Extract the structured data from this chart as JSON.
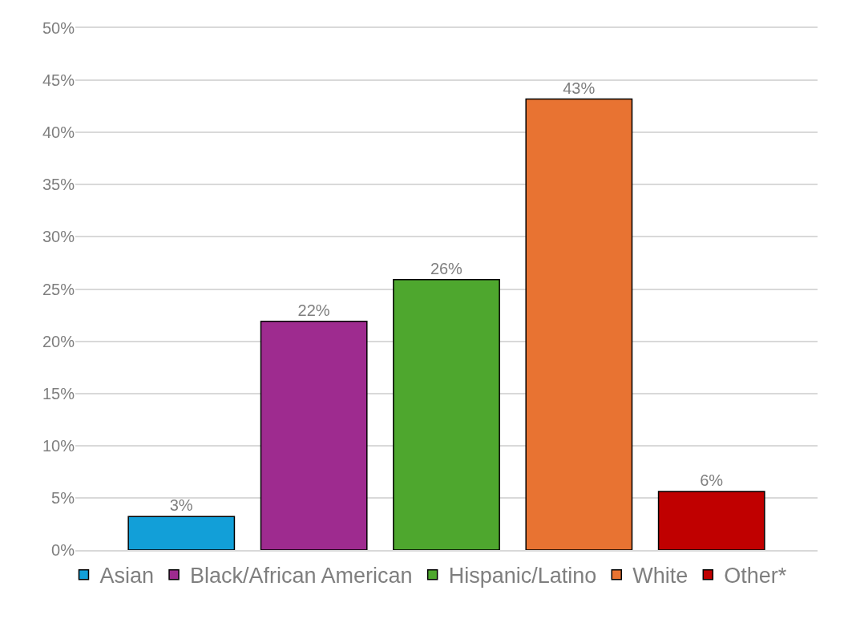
{
  "chart_data": {
    "type": "bar",
    "categories": [
      null,
      null,
      null,
      null,
      null
    ],
    "series": [
      {
        "name": "Asian",
        "color": "#129fd8",
        "values": [
          3.2,
          null,
          null,
          null,
          null
        ],
        "value_labels": [
          "3%",
          null,
          null,
          null,
          null
        ]
      },
      {
        "name": "Black/African American",
        "color": "#9e2b8f",
        "values": [
          null,
          21.9,
          null,
          null,
          null
        ],
        "value_labels": [
          null,
          "22%",
          null,
          null,
          null
        ]
      },
      {
        "name": "Hispanic/Latino",
        "color": "#4ea72e",
        "values": [
          null,
          null,
          25.9,
          null,
          null
        ],
        "value_labels": [
          null,
          null,
          "26%",
          null,
          null
        ]
      },
      {
        "name": "White",
        "color": "#e87332",
        "values": [
          null,
          null,
          null,
          43.2,
          null
        ],
        "value_labels": [
          null,
          null,
          null,
          "43%",
          null
        ]
      },
      {
        "name": "Other*",
        "color": "#c00000",
        "values": [
          null,
          null,
          null,
          null,
          5.6
        ],
        "value_labels": [
          null,
          null,
          null,
          null,
          "6%"
        ]
      }
    ],
    "ylim": [
      0,
      50
    ],
    "yticks": [
      {
        "value": 0,
        "label": "0%"
      },
      {
        "value": 5,
        "label": "5%"
      },
      {
        "value": 10,
        "label": "10%"
      },
      {
        "value": 15,
        "label": "15%"
      },
      {
        "value": 20,
        "label": "20%"
      },
      {
        "value": 25,
        "label": "25%"
      },
      {
        "value": 30,
        "label": "30%"
      },
      {
        "value": 35,
        "label": "35%"
      },
      {
        "value": 40,
        "label": "40%"
      },
      {
        "value": 45,
        "label": "45%"
      },
      {
        "value": 50,
        "label": "50%"
      }
    ],
    "grid": "y",
    "legend": "bottom",
    "tick_labels": "y"
  }
}
